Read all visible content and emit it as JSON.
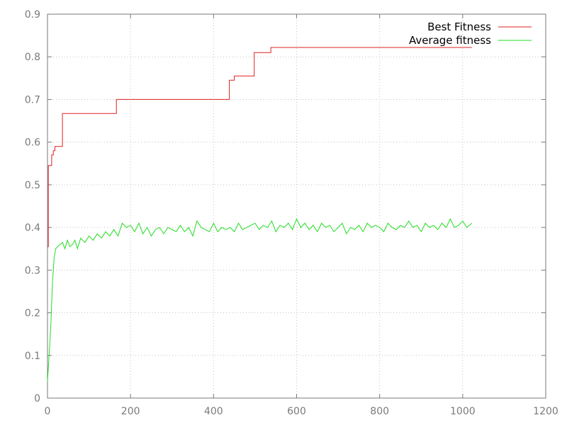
{
  "chart_data": {
    "type": "line",
    "title": "",
    "xlabel": "",
    "ylabel": "",
    "xlim": [
      0,
      1200
    ],
    "ylim": [
      0,
      0.9
    ],
    "xticks": [
      0,
      200,
      400,
      600,
      800,
      1000,
      1200
    ],
    "yticks": [
      0,
      0.1,
      0.2,
      0.3,
      0.4,
      0.5,
      0.6,
      0.7,
      0.8,
      0.9
    ],
    "xtick_labels": [
      "0",
      "200",
      "400",
      "600",
      "800",
      "1000",
      "1200"
    ],
    "ytick_labels": [
      "0",
      "0.1",
      "0.2",
      "0.3",
      "0.4",
      "0.5",
      "0.6",
      "0.7",
      "0.8",
      "0.9"
    ],
    "grid": true,
    "legend_position": "top-right",
    "series": [
      {
        "name": "Best Fitness",
        "color": "#e02020",
        "style": "step",
        "x": [
          0,
          2,
          6,
          10,
          14,
          18,
          24,
          30,
          36,
          60,
          100,
          140,
          162,
          166,
          200,
          300,
          400,
          434,
          438,
          444,
          450,
          480,
          494,
          498,
          520,
          534,
          538,
          600,
          800,
          1000,
          1022
        ],
        "y": [
          0.355,
          0.545,
          0.545,
          0.57,
          0.58,
          0.59,
          0.59,
          0.59,
          0.667,
          0.667,
          0.667,
          0.667,
          0.667,
          0.7,
          0.7,
          0.7,
          0.7,
          0.7,
          0.745,
          0.745,
          0.755,
          0.755,
          0.755,
          0.81,
          0.81,
          0.81,
          0.822,
          0.822,
          0.822,
          0.822,
          0.822
        ]
      },
      {
        "name": "Average fitness",
        "color": "#22dd22",
        "style": "line",
        "x": [
          0,
          4,
          8,
          12,
          16,
          20,
          24,
          30,
          36,
          42,
          48,
          54,
          60,
          66,
          72,
          80,
          90,
          100,
          110,
          120,
          130,
          140,
          150,
          160,
          170,
          180,
          190,
          200,
          210,
          220,
          230,
          240,
          250,
          260,
          270,
          280,
          290,
          300,
          310,
          320,
          330,
          340,
          350,
          360,
          370,
          380,
          390,
          400,
          410,
          420,
          430,
          440,
          450,
          460,
          470,
          480,
          490,
          500,
          510,
          520,
          530,
          540,
          550,
          560,
          570,
          580,
          590,
          600,
          610,
          620,
          630,
          640,
          650,
          660,
          670,
          680,
          690,
          700,
          710,
          720,
          730,
          740,
          750,
          760,
          770,
          780,
          790,
          800,
          810,
          820,
          830,
          840,
          850,
          860,
          870,
          880,
          890,
          900,
          910,
          920,
          930,
          940,
          950,
          960,
          970,
          980,
          990,
          1000,
          1010,
          1022
        ],
        "y": [
          0.04,
          0.1,
          0.17,
          0.27,
          0.33,
          0.35,
          0.355,
          0.36,
          0.365,
          0.35,
          0.37,
          0.355,
          0.36,
          0.37,
          0.35,
          0.375,
          0.365,
          0.38,
          0.37,
          0.385,
          0.375,
          0.39,
          0.38,
          0.395,
          0.38,
          0.41,
          0.4,
          0.405,
          0.39,
          0.41,
          0.385,
          0.4,
          0.38,
          0.395,
          0.4,
          0.385,
          0.4,
          0.395,
          0.39,
          0.405,
          0.39,
          0.4,
          0.38,
          0.415,
          0.4,
          0.395,
          0.39,
          0.41,
          0.39,
          0.4,
          0.395,
          0.4,
          0.39,
          0.41,
          0.395,
          0.4,
          0.405,
          0.41,
          0.395,
          0.405,
          0.4,
          0.415,
          0.39,
          0.405,
          0.4,
          0.41,
          0.395,
          0.42,
          0.4,
          0.41,
          0.395,
          0.405,
          0.39,
          0.41,
          0.4,
          0.405,
          0.39,
          0.4,
          0.41,
          0.385,
          0.4,
          0.395,
          0.405,
          0.39,
          0.41,
          0.4,
          0.405,
          0.4,
          0.39,
          0.41,
          0.4,
          0.395,
          0.405,
          0.4,
          0.415,
          0.4,
          0.405,
          0.39,
          0.41,
          0.4,
          0.405,
          0.395,
          0.41,
          0.4,
          0.42,
          0.4,
          0.405,
          0.415,
          0.4,
          0.41
        ]
      }
    ]
  }
}
